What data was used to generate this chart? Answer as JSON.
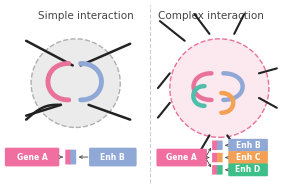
{
  "bg_color": "#ffffff",
  "title_left": "Simple interaction",
  "title_right": "Complex interaction",
  "title_fontsize": 7.5,
  "gene_a_color": "#f06fa0",
  "gene_a_text": "Gene A",
  "enh_b_color": "#8fa8d5",
  "enh_b_text": "Enh B",
  "enh_c_color": "#f5a155",
  "enh_c_text": "Enh C",
  "enh_d_color": "#3dbf8a",
  "enh_d_text": "Enh D",
  "small_pink": "#f06fa0",
  "small_blue": "#8fa8d5",
  "small_teal": "#4dbfaa",
  "small_orange": "#f5a155",
  "enh_d_node_color": "#3dbf8a",
  "loop_pink": "#e8729a",
  "loop_blue": "#8fa8d5",
  "loop_teal": "#4dbfaa",
  "loop_orange": "#f5a155",
  "chromatin_color": "#222222",
  "circle_gray_face": "#ebebeb",
  "circle_gray_edge": "#b0b0b0",
  "circle_pink_face": "#fce8ef",
  "circle_pink_edge": "#e8729a",
  "divider_color": "#cccccc"
}
